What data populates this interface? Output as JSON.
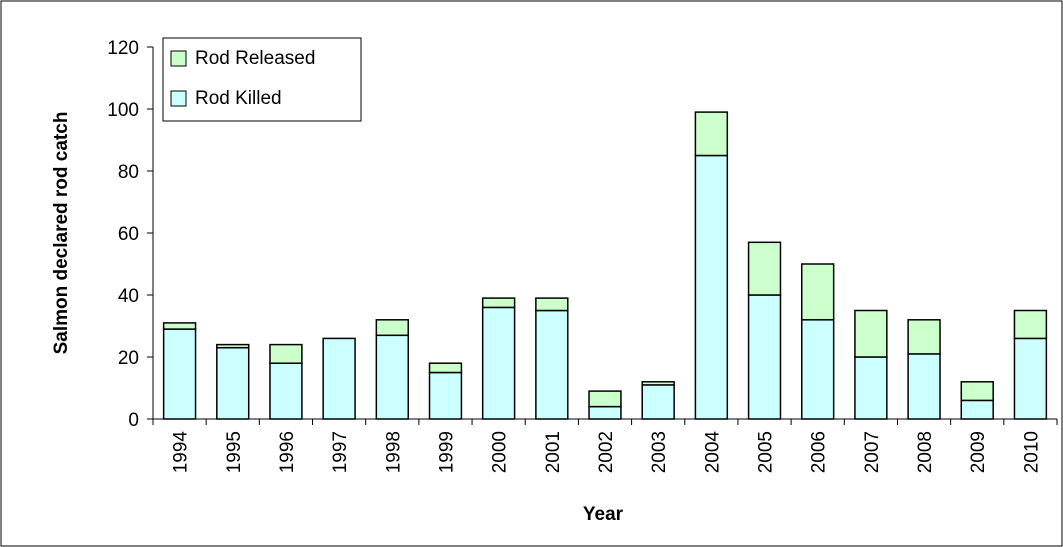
{
  "colors": {
    "killed": "#ccffff",
    "released": "#ccffcc",
    "stroke": "#000000",
    "frame": "#000000",
    "background": "#ffffff"
  },
  "chart_data": {
    "type": "bar",
    "stacked": true,
    "title": "",
    "xlabel": "Year",
    "ylabel": "Salmon declared rod catch",
    "ylim": [
      0,
      120
    ],
    "yticks": [
      0,
      20,
      40,
      60,
      80,
      100,
      120
    ],
    "yticks_labels": [
      "0",
      "20",
      "40",
      "60",
      "80",
      "100",
      "120"
    ],
    "grid": false,
    "legend_position": "top-left",
    "categories": [
      "1994",
      "1995",
      "1996",
      "1997",
      "1998",
      "1999",
      "2000",
      "2001",
      "2002",
      "2003",
      "2004",
      "2005",
      "2006",
      "2007",
      "2008",
      "2009",
      "2010"
    ],
    "series": [
      {
        "name": "Rod Killed",
        "color": "#ccffff",
        "values": [
          29,
          23,
          18,
          26,
          27,
          15,
          36,
          35,
          4,
          11,
          85,
          40,
          32,
          20,
          21,
          6,
          26
        ]
      },
      {
        "name": "Rod Released",
        "color": "#ccffcc",
        "values": [
          2,
          1,
          6,
          0,
          5,
          3,
          3,
          4,
          5,
          1,
          14,
          17,
          18,
          15,
          11,
          6,
          9
        ]
      }
    ],
    "legend": [
      "Rod Released",
      "Rod Killed"
    ]
  }
}
